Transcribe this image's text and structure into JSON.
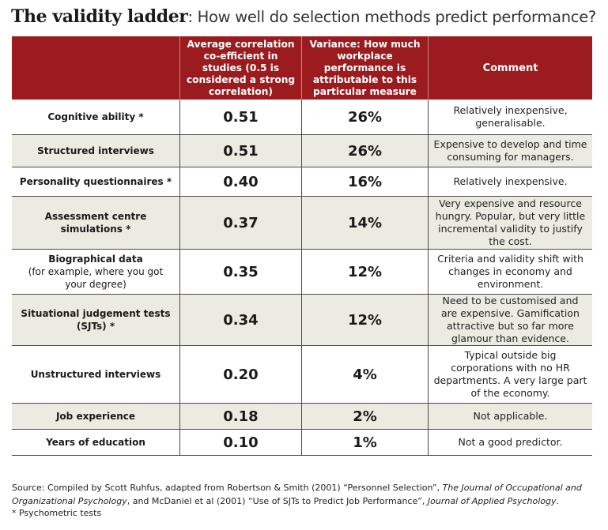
{
  "title": {
    "bold": "The validity ladder",
    "rest": ": How well do selection methods predict performance?"
  },
  "headers": {
    "col1": "",
    "col2": "Average correlation co-efficient in studies (0.5 is considered a strong correlation)",
    "col3": "Variance: How much workplace performance is attributable to this particular measure",
    "col4": "Comment"
  },
  "rows": [
    {
      "method": "Cognitive ability *",
      "method_sub": "",
      "correlation": "0.51",
      "variance": "26%",
      "comment": "Relatively inexpensive, generalisable."
    },
    {
      "method": "Structured interviews",
      "method_sub": "",
      "correlation": "0.51",
      "variance": "26%",
      "comment": "Expensive to develop and time consuming for managers."
    },
    {
      "method": "Personality questionnaires *",
      "method_sub": "",
      "correlation": "0.40",
      "variance": "16%",
      "comment": "Relatively inexpensive."
    },
    {
      "method": "Assessment centre simulations *",
      "method_sub": "",
      "correlation": "0.37",
      "variance": "14%",
      "comment": "Very expensive and resource hungry. Popular, but very little incremental validity to justify the cost."
    },
    {
      "method": "Biographical data",
      "method_sub": "(for example, where you got your degree)",
      "correlation": "0.35",
      "variance": "12%",
      "comment": "Criteria and validity shift with changes in economy and environment."
    },
    {
      "method": "Situational judgement tests (SJTs) *",
      "method_sub": "",
      "correlation": "0.34",
      "variance": "12%",
      "comment": "Need to be customised and are expensive. Gamification attractive but so far more glamour than evidence."
    },
    {
      "method": "Unstructured interviews",
      "method_sub": "",
      "correlation": "0.20",
      "variance": "4%",
      "comment": "Typical outside big corporations with no HR departments. A very large part of the economy."
    },
    {
      "method": "Job experience",
      "method_sub": "",
      "correlation": "0.18",
      "variance": "2%",
      "comment": "Not applicable."
    },
    {
      "method": "Years of education",
      "method_sub": "",
      "correlation": "0.10",
      "variance": "1%",
      "comment": "Not a good predictor."
    }
  ],
  "source": {
    "part1": "Source: Compiled by Scott Ruhfus, adapted from Robertson & Smith (2001) “Personnel Selection”, ",
    "journal1": "The Journal of Occupational and Organizational Psychology",
    "part2": ", and McDaniel et al (2001) “Use of SJTs to Predict Job Performance”, ",
    "journal2": "Journal of Applied Psychology",
    "part3": "."
  },
  "note": "* Psychometric tests",
  "colors": {
    "header_bg": "#9b1b1f",
    "shade_bg": "#ecebe2"
  },
  "chart_data": {
    "type": "table",
    "title": "The validity ladder: How well do selection methods predict performance?",
    "columns": [
      "",
      "Average correlation co-efficient in studies (0.5 is considered a strong correlation)",
      "Variance: How much workplace performance is attributable to this particular measure",
      "Comment"
    ],
    "categories": [
      "Cognitive ability *",
      "Structured interviews",
      "Personality questionnaires *",
      "Assessment centre simulations *",
      "Biographical data (for example, where you got your degree)",
      "Situational judgement tests (SJTs) *",
      "Unstructured interviews",
      "Job experience",
      "Years of education"
    ],
    "series": [
      {
        "name": "Average correlation co-efficient in studies",
        "values": [
          0.51,
          0.51,
          0.4,
          0.37,
          0.35,
          0.34,
          0.2,
          0.18,
          0.1
        ]
      },
      {
        "name": "Variance",
        "values": [
          26,
          26,
          16,
          14,
          12,
          12,
          4,
          2,
          1
        ]
      }
    ]
  }
}
